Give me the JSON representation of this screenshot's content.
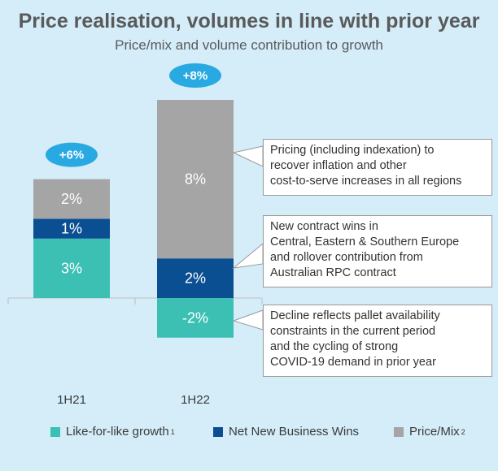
{
  "title": "Price realisation, volumes in line with prior year",
  "subtitle": "Price/mix and volume contribution to growth",
  "colors": {
    "panel_bg": "#d4edf9",
    "lfl": "#3cc0b4",
    "nnbw": "#0b4f93",
    "price": "#a5a5a5",
    "badge": "#29a9e2"
  },
  "chart_data": {
    "type": "bar",
    "stacked": true,
    "categories": [
      "1H21",
      "1H22"
    ],
    "series": [
      {
        "name": "Like-for-like growth",
        "values": [
          3,
          -2
        ],
        "labels": [
          "3%",
          "-2%"
        ]
      },
      {
        "name": "Net New Business Wins",
        "values": [
          1,
          2
        ],
        "labels": [
          "1%",
          "2%"
        ]
      },
      {
        "name": "Price/Mix",
        "values": [
          2,
          8
        ],
        "labels": [
          "2%",
          "8%"
        ]
      }
    ],
    "totals": [
      "+6%",
      "+8%"
    ],
    "ylim": [
      -3,
      11
    ]
  },
  "legend": [
    {
      "label": "Like-for-like growth",
      "sup": "1"
    },
    {
      "label": "Net New Business Wins",
      "sup": ""
    },
    {
      "label": "Price/Mix",
      "sup": "2"
    }
  ],
  "callouts": [
    {
      "lines": [
        "Pricing (including indexation) to",
        "recover inflation and other",
        "cost-to-serve increases in all regions"
      ]
    },
    {
      "lines": [
        "New contract wins in",
        "Central, Eastern & Southern Europe",
        "and rollover contribution from",
        "Australian RPC contract"
      ]
    },
    {
      "lines": [
        "Decline reflects pallet availability",
        "constraints in the current period",
        "and the cycling of strong",
        "COVID-19 demand in prior year"
      ]
    }
  ]
}
